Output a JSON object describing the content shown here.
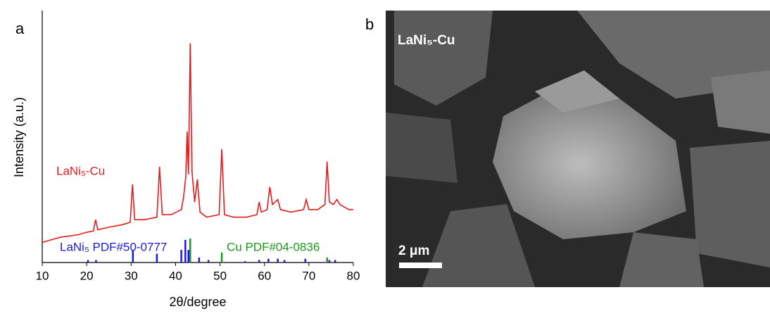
{
  "chart_data": {
    "type": "line",
    "xlabel": "2θ/degree",
    "ylabel": "Intensity (a.u.)",
    "panel_label": "a",
    "xlim": [
      10,
      80
    ],
    "xticks": [
      10,
      20,
      30,
      40,
      50,
      60,
      70,
      80
    ],
    "ylim": [
      0,
      100
    ],
    "series": [
      {
        "name": "LaNi₅-Cu",
        "type": "line",
        "color": "#e41a1c",
        "x": [
          10,
          12,
          14,
          16,
          18,
          20,
          21.5,
          22,
          22.5,
          25,
          28,
          29.8,
          30.3,
          30.8,
          33,
          35.8,
          36.4,
          37,
          39,
          41.3,
          41.8,
          42.3,
          42.6,
          42.9,
          43.3,
          43.7,
          44.3,
          44.9,
          45.5,
          47,
          49.8,
          50.4,
          51,
          53,
          56,
          58.3,
          58.8,
          59.3,
          60.6,
          61.2,
          61.8,
          63,
          63.6,
          66,
          68.8,
          69.4,
          70,
          72,
          73.6,
          74.1,
          74.6,
          75.5,
          76.3,
          77,
          79,
          80
        ],
        "values": [
          8,
          9,
          10,
          10.5,
          11,
          12,
          12.5,
          17,
          13,
          14,
          15,
          16,
          31,
          17,
          17,
          18,
          38,
          19,
          19,
          21,
          26,
          34,
          52,
          35,
          87,
          36,
          24,
          33,
          20,
          18,
          19,
          45,
          19,
          18,
          18,
          19,
          24,
          20,
          21,
          30,
          23,
          25,
          21,
          20,
          21,
          25,
          21,
          21,
          23,
          40,
          24,
          23,
          25,
          23,
          21,
          21
        ]
      },
      {
        "name": "LaNi₅ PDF#50-0777",
        "type": "stem",
        "color": "#1a1ad6",
        "x": [
          20.3,
          22.1,
          30.4,
          35.8,
          41.3,
          42.2,
          42.9,
          45.3,
          47.4,
          55.6,
          58.8,
          60.9,
          63.0,
          64.5,
          69.2,
          74.6,
          75.9
        ],
        "values": [
          1,
          1,
          5,
          3.5,
          5,
          9,
          5,
          2,
          1,
          0.5,
          1,
          1.5,
          1.5,
          1,
          1.5,
          1,
          1
        ]
      },
      {
        "name": "Cu PDF#04-0836",
        "type": "stem",
        "color": "#1a9a1a",
        "x": [
          43.3,
          50.4,
          74.1
        ],
        "values": [
          9.5,
          4,
          2
        ]
      }
    ]
  },
  "image": {
    "panel_label": "b",
    "label": "LaNi₅-Cu",
    "scale_bar": "2 μm"
  }
}
